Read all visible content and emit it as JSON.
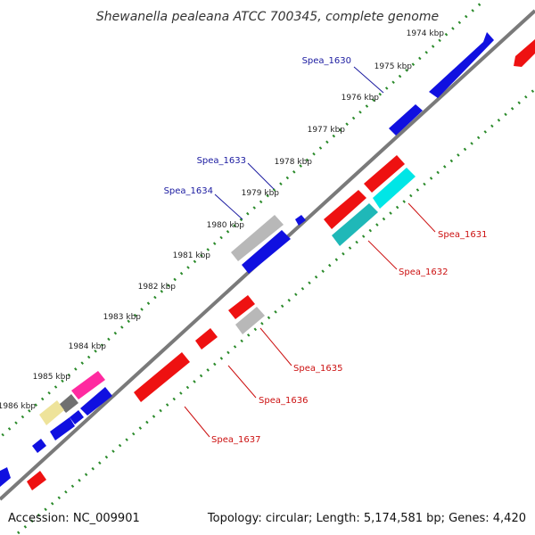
{
  "title": "Shewanella pealeana ATCC 700345, complete genome",
  "footer": {
    "accession": "Accession: NC_009901",
    "topology": "Topology: circular; Length: 5,174,581 bp; Genes: 4,420"
  },
  "colors": {
    "backbone": "#7a7a7a",
    "tick_dots": "#2a8a2a",
    "forward_gene": "#1010e0",
    "reverse_gene": "#ee1111",
    "pseudo_gene": "#b8b8b8",
    "forward_label": "#1a1aa0",
    "reverse_label": "#cc1111"
  },
  "ticks": [
    {
      "label": "1974 kbp"
    },
    {
      "label": "1975 kbp"
    },
    {
      "label": "1976 kbp"
    },
    {
      "label": "1977 kbp"
    },
    {
      "label": "1978 kbp"
    },
    {
      "label": "1979 kbp"
    },
    {
      "label": "1980 kbp"
    },
    {
      "label": "1981 kbp"
    },
    {
      "label": "1982 kbp"
    },
    {
      "label": "1983 kbp"
    },
    {
      "label": "1984 kbp"
    },
    {
      "label": "1985 kbp"
    },
    {
      "label": "1986 kbp"
    }
  ],
  "gene_labels": [
    {
      "name": "Spea_1630",
      "strand": "forward"
    },
    {
      "name": "Spea_1633",
      "strand": "forward"
    },
    {
      "name": "Spea_1634",
      "strand": "forward"
    },
    {
      "name": "Spea_1631",
      "strand": "reverse"
    },
    {
      "name": "Spea_1632",
      "strand": "reverse"
    },
    {
      "name": "Spea_1635",
      "strand": "reverse"
    },
    {
      "name": "Spea_1636",
      "strand": "reverse"
    },
    {
      "name": "Spea_1637",
      "strand": "reverse"
    }
  ]
}
